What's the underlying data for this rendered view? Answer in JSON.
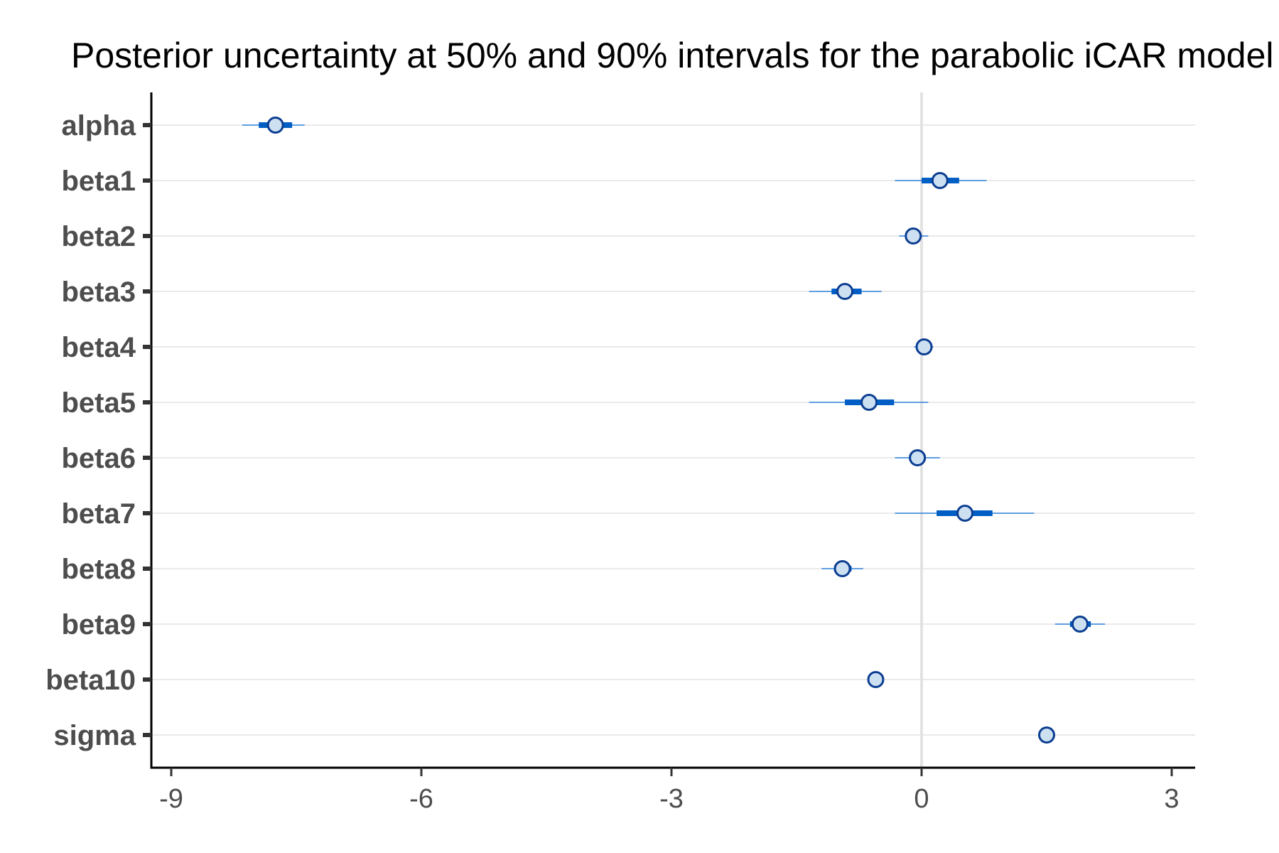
{
  "chart_data": {
    "type": "interval",
    "title": "Posterior uncertainty at 50% and 90% intervals for the parabolic iCAR model",
    "xlabel": "",
    "ylabel": "",
    "xlim": [
      -9.8,
      3.3
    ],
    "xticks": [
      -9,
      -6,
      -3,
      0,
      3
    ],
    "xtick_labels": [
      "-9",
      "-6",
      "-3",
      "0",
      "3"
    ],
    "reference_line": 0,
    "grid": "horizontal",
    "intervals": [
      "50%",
      "90%"
    ],
    "parameters": [
      {
        "name": "alpha",
        "median": -7.75,
        "lo50": -7.95,
        "hi50": -7.55,
        "lo90": -8.15,
        "hi90": -7.4
      },
      {
        "name": "beta1",
        "median": 0.22,
        "lo50": 0.0,
        "hi50": 0.45,
        "lo90": -0.32,
        "hi90": 0.78
      },
      {
        "name": "beta2",
        "median": -0.1,
        "lo50": -0.17,
        "hi50": -0.03,
        "lo90": -0.27,
        "hi90": 0.08
      },
      {
        "name": "beta3",
        "median": -0.92,
        "lo50": -1.08,
        "hi50": -0.72,
        "lo90": -1.35,
        "hi90": -0.48
      },
      {
        "name": "beta4",
        "median": 0.03,
        "lo50": -0.03,
        "hi50": 0.09,
        "lo90": -0.09,
        "hi90": 0.14
      },
      {
        "name": "beta5",
        "median": -0.63,
        "lo50": -0.92,
        "hi50": -0.33,
        "lo90": -1.35,
        "hi90": 0.08
      },
      {
        "name": "beta6",
        "median": -0.05,
        "lo50": -0.15,
        "hi50": 0.05,
        "lo90": -0.32,
        "hi90": 0.22
      },
      {
        "name": "beta7",
        "median": 0.52,
        "lo50": 0.18,
        "hi50": 0.85,
        "lo90": -0.32,
        "hi90": 1.35
      },
      {
        "name": "beta8",
        "median": -0.95,
        "lo50": -1.05,
        "hi50": -0.84,
        "lo90": -1.2,
        "hi90": -0.7
      },
      {
        "name": "beta9",
        "median": 1.9,
        "lo50": 1.78,
        "hi50": 2.03,
        "lo90": 1.6,
        "hi90": 2.2
      },
      {
        "name": "beta10",
        "median": -0.55,
        "lo50": -0.6,
        "hi50": -0.5,
        "lo90": -0.65,
        "hi90": -0.45
      },
      {
        "name": "sigma",
        "median": 1.5,
        "lo50": 1.45,
        "hi50": 1.55,
        "lo90": 1.4,
        "hi90": 1.6
      }
    ],
    "colors": {
      "point_fill": "#cde0f2",
      "point_stroke": "#0b3d91",
      "inner_interval": "#005ec4",
      "outer_interval": "#2f80d9",
      "grid": "#dedede",
      "zero_line": "#e2e2e2",
      "axis": "#000000",
      "tick_label": "#4d4d4d"
    }
  }
}
